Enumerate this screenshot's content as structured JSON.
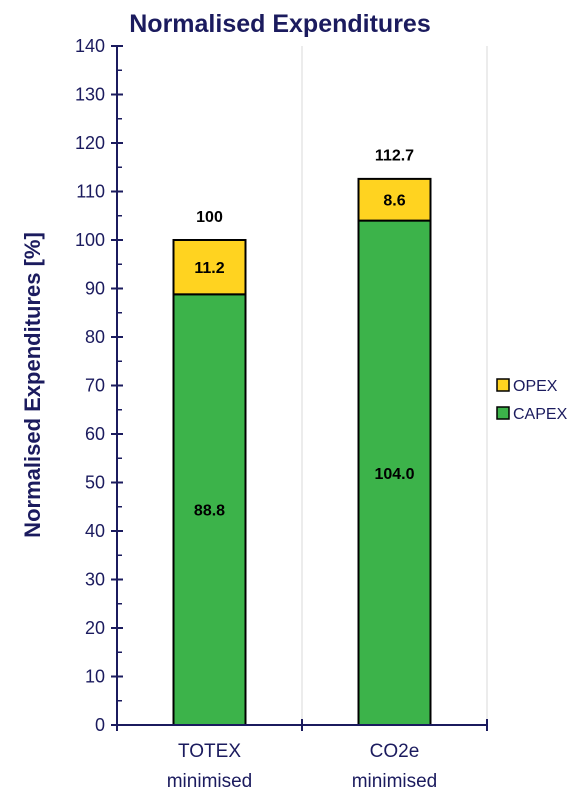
{
  "chart_data": {
    "type": "bar",
    "stacked": true,
    "title": "Normalised Expenditures",
    "ylabel": "Normalised Expenditures [%]",
    "xlabel": "",
    "ylim": [
      0,
      140
    ],
    "yticks": [
      "0",
      "10",
      "20",
      "30",
      "40",
      "50",
      "60",
      "70",
      "80",
      "90",
      "100",
      "110",
      "120",
      "130",
      "140"
    ],
    "categories": [
      [
        "TOTEX",
        "minimised"
      ],
      [
        "CO2e",
        "minimised"
      ]
    ],
    "series": [
      {
        "name": "CAPEX",
        "values": [
          88.8,
          104.0
        ],
        "labels": [
          "88.8",
          "104.0"
        ],
        "color": "#3cb34a"
      },
      {
        "name": "OPEX",
        "values": [
          11.2,
          8.6
        ],
        "labels": [
          "11.2",
          "8.6"
        ],
        "color": "#ffd320"
      }
    ],
    "totals": [
      "100",
      "112.7"
    ],
    "legend": {
      "position": "right",
      "entries": [
        {
          "name": "OPEX",
          "color": "#ffd320"
        },
        {
          "name": "CAPEX",
          "color": "#3cb34a"
        }
      ]
    },
    "grid": {
      "vertical": true,
      "horizontal": false
    }
  }
}
